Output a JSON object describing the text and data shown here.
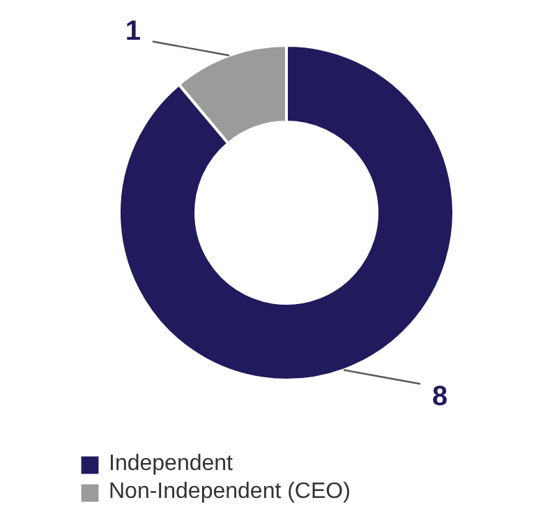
{
  "chart_data": {
    "type": "donut",
    "categories": [
      "Independent",
      "Non-Independent (CEO)"
    ],
    "values": [
      8,
      1
    ],
    "colors": [
      "#211a5c",
      "#9b9b9b"
    ],
    "data_labels": true,
    "legend": "bottom"
  }
}
